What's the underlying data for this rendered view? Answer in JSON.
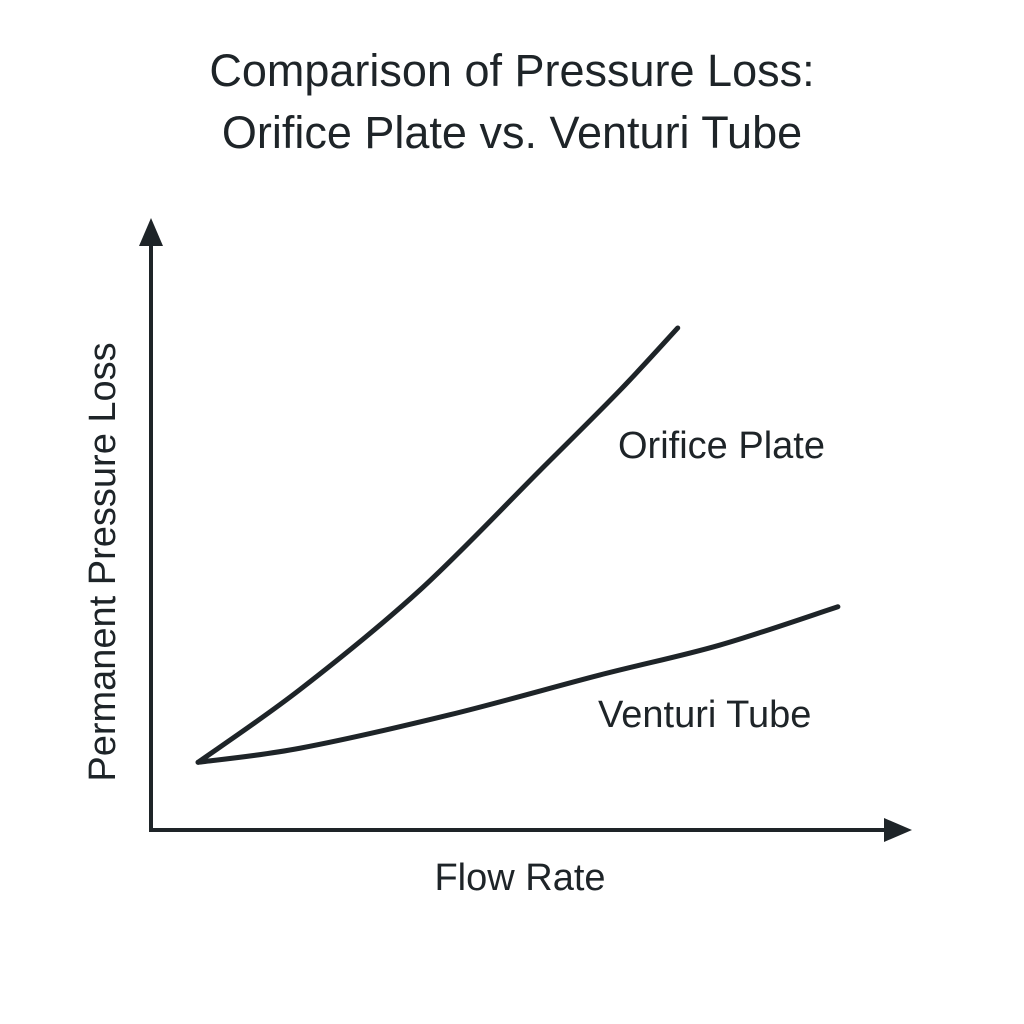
{
  "chart_data": {
    "type": "line",
    "title": [
      "Comparison of Pressure Loss:",
      "Orifice Plate vs. Venturi Tube"
    ],
    "xlabel": "Flow Rate",
    "ylabel": "Permanent Pressure Loss",
    "xlim": [
      0,
      10
    ],
    "ylim": [
      0,
      10
    ],
    "grid": false,
    "ticks": "none (qualitative axes, arbitrary units)",
    "series": [
      {
        "name": "Orifice Plate",
        "x": [
          0.62,
          1.96,
          3.54,
          5.13,
          6.18,
          6.94
        ],
        "y": [
          1.11,
          2.3,
          3.93,
          5.9,
          7.21,
          8.23
        ]
      },
      {
        "name": "Venturi Tube",
        "x": [
          0.62,
          1.96,
          3.94,
          5.91,
          7.49,
          9.05
        ],
        "y": [
          1.11,
          1.34,
          1.89,
          2.54,
          3.03,
          3.66
        ]
      }
    ],
    "line_color": "#1e2428"
  }
}
